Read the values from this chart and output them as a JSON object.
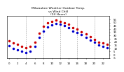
{
  "title": "Milwaukee Weather Outdoor Temp.\nvs Wind Chill\n(24 Hours)",
  "hours": [
    0,
    1,
    2,
    3,
    4,
    5,
    6,
    7,
    8,
    9,
    10,
    11,
    12,
    13,
    14,
    15,
    16,
    17,
    18,
    19,
    20,
    21,
    22,
    23
  ],
  "outdoor_temp": [
    22,
    18,
    16,
    13,
    11,
    13,
    20,
    34,
    44,
    50,
    52,
    54,
    52,
    50,
    47,
    42,
    40,
    36,
    32,
    28,
    24,
    20,
    18,
    16
  ],
  "wind_chill": [
    14,
    10,
    8,
    5,
    3,
    5,
    13,
    27,
    37,
    43,
    46,
    49,
    47,
    45,
    42,
    37,
    35,
    31,
    27,
    23,
    19,
    15,
    13,
    11
  ],
  "outdoor_color": "#cc0000",
  "wind_chill_color": "#0000cc",
  "bg_color": "#ffffff",
  "plot_bg": "#ffffff",
  "grid_color": "#888888",
  "ylim": [
    -5,
    60
  ],
  "title_color": "#000000",
  "tick_color": "#000000",
  "axis_color": "#000000",
  "marker_size": 1.5,
  "vgrid_hours": [
    4,
    8,
    12,
    16,
    20
  ],
  "xtick_every": 2
}
